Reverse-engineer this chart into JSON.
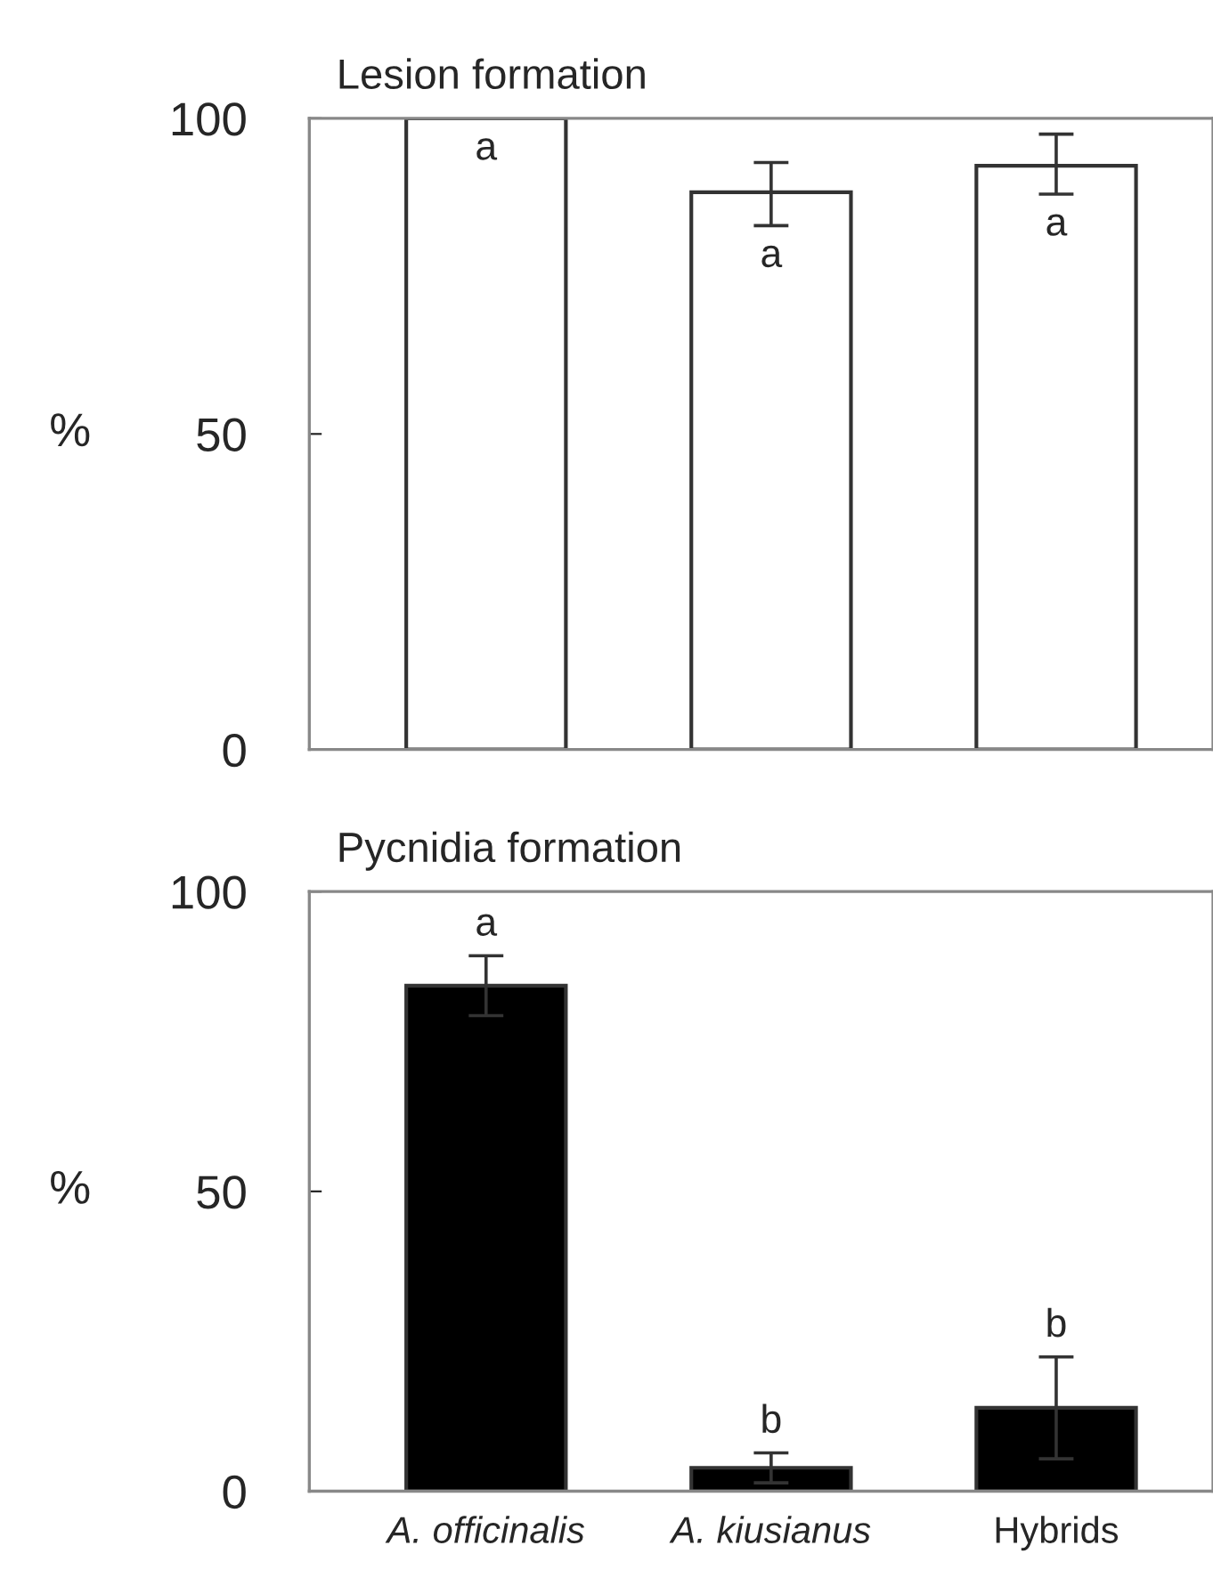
{
  "chart_data": [
    {
      "type": "bar",
      "title": "Lesion formation",
      "ylabel": "%",
      "categories": [
        null,
        null,
        null
      ],
      "values": [
        100,
        88.3,
        92.5
      ],
      "errors": [
        null,
        [
          83,
          93
        ],
        [
          88,
          97.5
        ]
      ],
      "color": "#ffffff",
      "ylim": [
        0,
        100
      ],
      "yticks": [
        0,
        50,
        100
      ],
      "value_labels": [
        "a",
        "a",
        "a"
      ]
    },
    {
      "type": "bar",
      "title": "Pycnidia formation",
      "ylabel": "%",
      "categories": [
        "A. officinalis",
        "A. kiusianus",
        "Hybrids"
      ],
      "values": [
        84.3,
        3.9,
        13.9
      ],
      "errors": [
        5,
        2.5,
        8.5
      ],
      "color": "#000000",
      "ylim": [
        0,
        100
      ],
      "yticks": [
        0,
        50,
        100
      ],
      "value_labels": [
        "a",
        "b",
        "b"
      ]
    }
  ]
}
